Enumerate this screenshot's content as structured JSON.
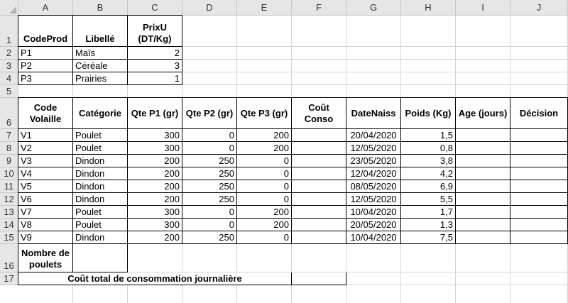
{
  "columns": [
    "A",
    "B",
    "C",
    "D",
    "E",
    "F",
    "G",
    "H",
    "I",
    "J"
  ],
  "rows": [
    "1",
    "2",
    "3",
    "4",
    "5",
    "6",
    "7",
    "8",
    "9",
    "10",
    "11",
    "12",
    "13",
    "14",
    "15",
    "16",
    "17"
  ],
  "products": {
    "headers": [
      "CodeProd",
      "Libellé",
      "PrixU (DT/Kg)"
    ],
    "rows": [
      [
        "P1",
        "Maïs",
        "2"
      ],
      [
        "P2",
        "Céréale",
        "3"
      ],
      [
        "P3",
        "Prairies",
        "1"
      ]
    ]
  },
  "poultry": {
    "headers": [
      "Code Volaille",
      "Catégorie",
      "Qte P1 (gr)",
      "Qte P2 (gr)",
      "Qte P3 (gr)",
      "Coût Conso",
      "DateNaiss",
      "Poids (Kg)",
      "Age (jours)",
      "Décision"
    ],
    "rows": [
      [
        "V1",
        "Poulet",
        "300",
        "0",
        "200",
        "",
        "20/04/2020",
        "1,5",
        "",
        ""
      ],
      [
        "V2",
        "Poulet",
        "300",
        "0",
        "200",
        "",
        "12/05/2020",
        "0,8",
        "",
        ""
      ],
      [
        "V3",
        "Dindon",
        "200",
        "250",
        "0",
        "",
        "23/05/2020",
        "3,8",
        "",
        ""
      ],
      [
        "V4",
        "Dindon",
        "200",
        "250",
        "0",
        "",
        "12/04/2020",
        "4,2",
        "",
        ""
      ],
      [
        "V5",
        "Dindon",
        "200",
        "250",
        "0",
        "",
        "08/05/2020",
        "6,9",
        "",
        ""
      ],
      [
        "V6",
        "Dindon",
        "200",
        "250",
        "0",
        "",
        "12/05/2020",
        "5,5",
        "",
        ""
      ],
      [
        "V7",
        "Poulet",
        "300",
        "0",
        "200",
        "",
        "10/04/2020",
        "1,7",
        "",
        ""
      ],
      [
        "V8",
        "Poulet",
        "300",
        "0",
        "200",
        "",
        "20/05/2020",
        "1,3",
        "",
        ""
      ],
      [
        "V9",
        "Dindon",
        "200",
        "250",
        "0",
        "",
        "10/04/2020",
        "7,5",
        "",
        ""
      ]
    ]
  },
  "summary": {
    "nombre_poulets_label": "Nombre de poulets",
    "cout_total_label": "Coût total de consommation journalière"
  }
}
